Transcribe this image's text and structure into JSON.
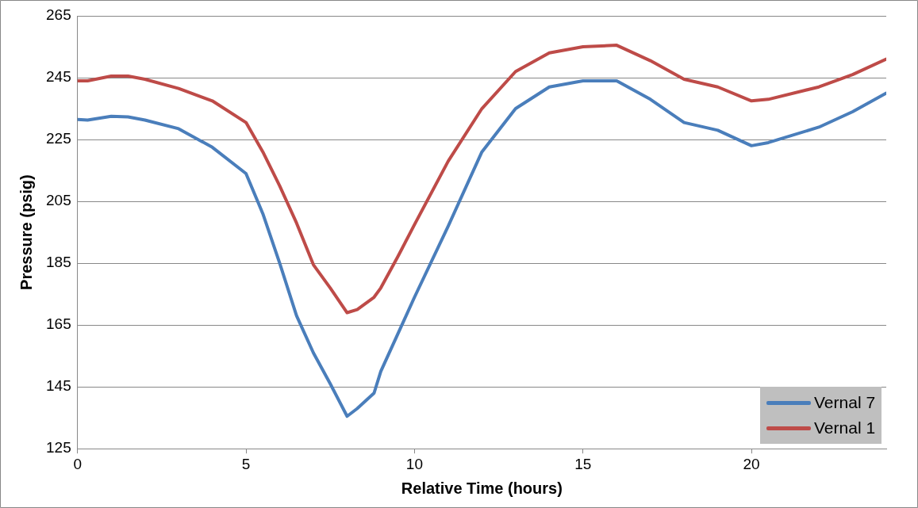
{
  "chart_data": {
    "type": "line",
    "xlabel": "Relative Time (hours)",
    "ylabel": "Pressure (psig)",
    "xlim": [
      0,
      24
    ],
    "xticks": [
      0,
      5,
      10,
      15,
      20
    ],
    "ylim": [
      125,
      265
    ],
    "yticks": [
      125,
      145,
      165,
      185,
      205,
      225,
      245,
      265
    ],
    "grid": "y",
    "legend": "bottom right",
    "marker": "none",
    "line_style": "solid",
    "series": [
      {
        "name": "Vernal 7",
        "color": "#4a7ebb",
        "x": [
          0,
          0.3,
          1,
          1.5,
          2,
          3,
          4,
          5,
          5.5,
          6,
          6.5,
          7,
          7.5,
          8,
          8.3,
          8.8,
          9,
          9.5,
          10,
          11,
          12,
          13,
          14,
          15,
          16,
          17,
          18,
          19,
          20,
          20.5,
          22,
          23,
          24
        ],
        "values": [
          231.5,
          231.3,
          232.5,
          232.3,
          231.3,
          228.5,
          222.5,
          214,
          201,
          185,
          168,
          156,
          146,
          135.5,
          138,
          143,
          150,
          162,
          174,
          197,
          221,
          235,
          242,
          244,
          244,
          238,
          230.5,
          228,
          223,
          224,
          229,
          234,
          240
        ]
      },
      {
        "name": "Vernal 1",
        "color": "#be4b48",
        "x": [
          0,
          0.3,
          1,
          1.5,
          2,
          3,
          4,
          5,
          5.5,
          6,
          6.5,
          7,
          7.5,
          8,
          8.3,
          8.8,
          9,
          9.5,
          10,
          11,
          12,
          13,
          14,
          15,
          16,
          17,
          18,
          19,
          20,
          20.5,
          22,
          23,
          24
        ],
        "values": [
          244,
          244,
          245.5,
          245.5,
          244.5,
          241.5,
          237.5,
          230.5,
          221,
          210,
          198,
          184.5,
          177,
          169,
          170,
          174,
          177,
          187,
          197.5,
          218,
          235,
          247,
          253,
          255,
          255.5,
          250.5,
          244.5,
          242,
          237.5,
          238,
          242,
          246,
          251
        ]
      }
    ]
  }
}
